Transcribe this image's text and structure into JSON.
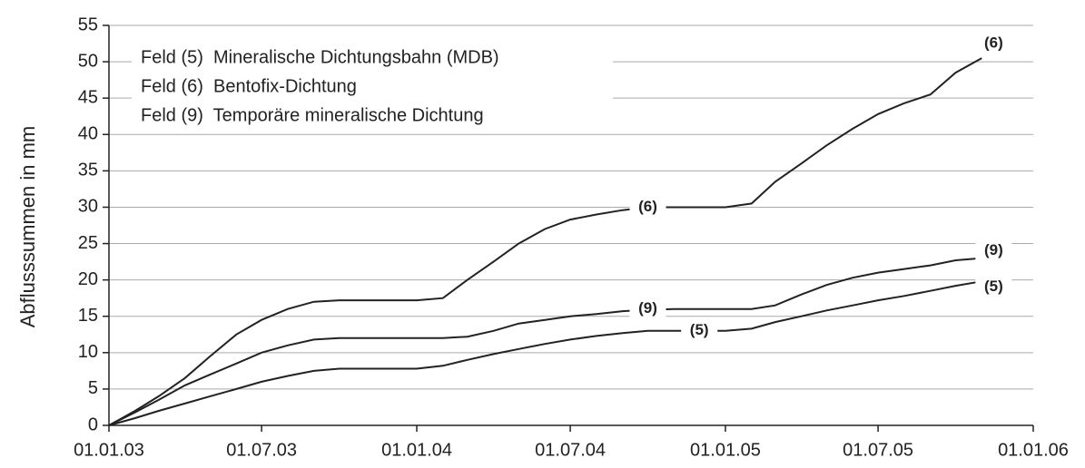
{
  "chart_data": {
    "type": "line",
    "y_label": "Abflusssummen in mm",
    "x": [
      "01.01.03",
      "01.02.03",
      "01.03.03",
      "01.04.03",
      "01.05.03",
      "01.06.03",
      "01.07.03",
      "01.08.03",
      "01.09.03",
      "01.10.03",
      "01.11.03",
      "01.12.03",
      "01.01.04",
      "01.02.04",
      "01.03.04",
      "01.04.04",
      "01.05.04",
      "01.06.04",
      "01.07.04",
      "01.08.04",
      "01.09.04",
      "01.10.04",
      "01.11.04",
      "01.12.04",
      "01.01.05",
      "01.02.05",
      "01.03.05",
      "01.04.05",
      "01.05.05",
      "01.06.05",
      "01.07.05",
      "01.08.05",
      "01.09.05",
      "01.10.05",
      "01.11.05"
    ],
    "series": [
      {
        "name": "Feld (5)  Mineralische Dichtungsbahn (MDB)",
        "color": "#222222",
        "values": [
          0,
          1,
          2,
          3,
          4,
          5,
          6,
          6.8,
          7.5,
          7.8,
          7.8,
          7.8,
          7.8,
          8.2,
          9,
          9.8,
          10.5,
          11.2,
          11.8,
          12.3,
          12.7,
          13,
          13,
          13,
          13,
          13.3,
          14.2,
          15,
          15.8,
          16.5,
          17.2,
          17.8,
          18.5,
          19.2,
          19.8
        ]
      },
      {
        "name": "Feld (6)  Bentofix-Dichtung",
        "color": "#222222",
        "values": [
          0,
          2,
          4,
          6.5,
          9.5,
          12.5,
          14.5,
          16,
          17,
          17.2,
          17.2,
          17.2,
          17.2,
          17.5,
          20,
          22.5,
          25,
          27,
          28.3,
          29,
          29.6,
          30,
          30,
          30,
          30,
          30.5,
          33.5,
          36,
          38.5,
          40.8,
          42.8,
          44.3,
          45.5,
          48.5,
          50.5
        ]
      },
      {
        "name": "Feld (9)  Temporäre mineralische Dichtung",
        "color": "#222222",
        "values": [
          0,
          1.8,
          3.5,
          5.5,
          7,
          8.5,
          10,
          11,
          11.8,
          12,
          12,
          12,
          12,
          12,
          12.2,
          13,
          14,
          14.5,
          15,
          15.3,
          15.7,
          15.9,
          16,
          16,
          16,
          16,
          16.5,
          18,
          19.3,
          20.3,
          21,
          21.5,
          22,
          22.7,
          23
        ]
      }
    ],
    "annotations": [
      {
        "text": "(6)",
        "x": "01.10.04",
        "y": 30
      },
      {
        "text": "(9)",
        "x": "01.10.04",
        "y": 16
      },
      {
        "text": "(5)",
        "x": "01.12.04",
        "y": 13
      },
      {
        "text": "(6)",
        "x": "15.11.05",
        "y": 52.5
      },
      {
        "text": "(9)",
        "x": "15.11.05",
        "y": 24
      },
      {
        "text": "(5)",
        "x": "15.11.05",
        "y": 19
      }
    ],
    "xlim": [
      "01.01.03",
      "01.01.06"
    ],
    "xticks": [
      "01.01.03",
      "01.07.03",
      "01.01.04",
      "01.07.04",
      "01.01.05",
      "01.07.05",
      "01.01.06"
    ],
    "ylim": [
      0,
      55
    ],
    "yticks": [
      0,
      5,
      10,
      15,
      20,
      25,
      30,
      35,
      40,
      45,
      50,
      55
    ],
    "grid": true,
    "legend": "upper left"
  }
}
